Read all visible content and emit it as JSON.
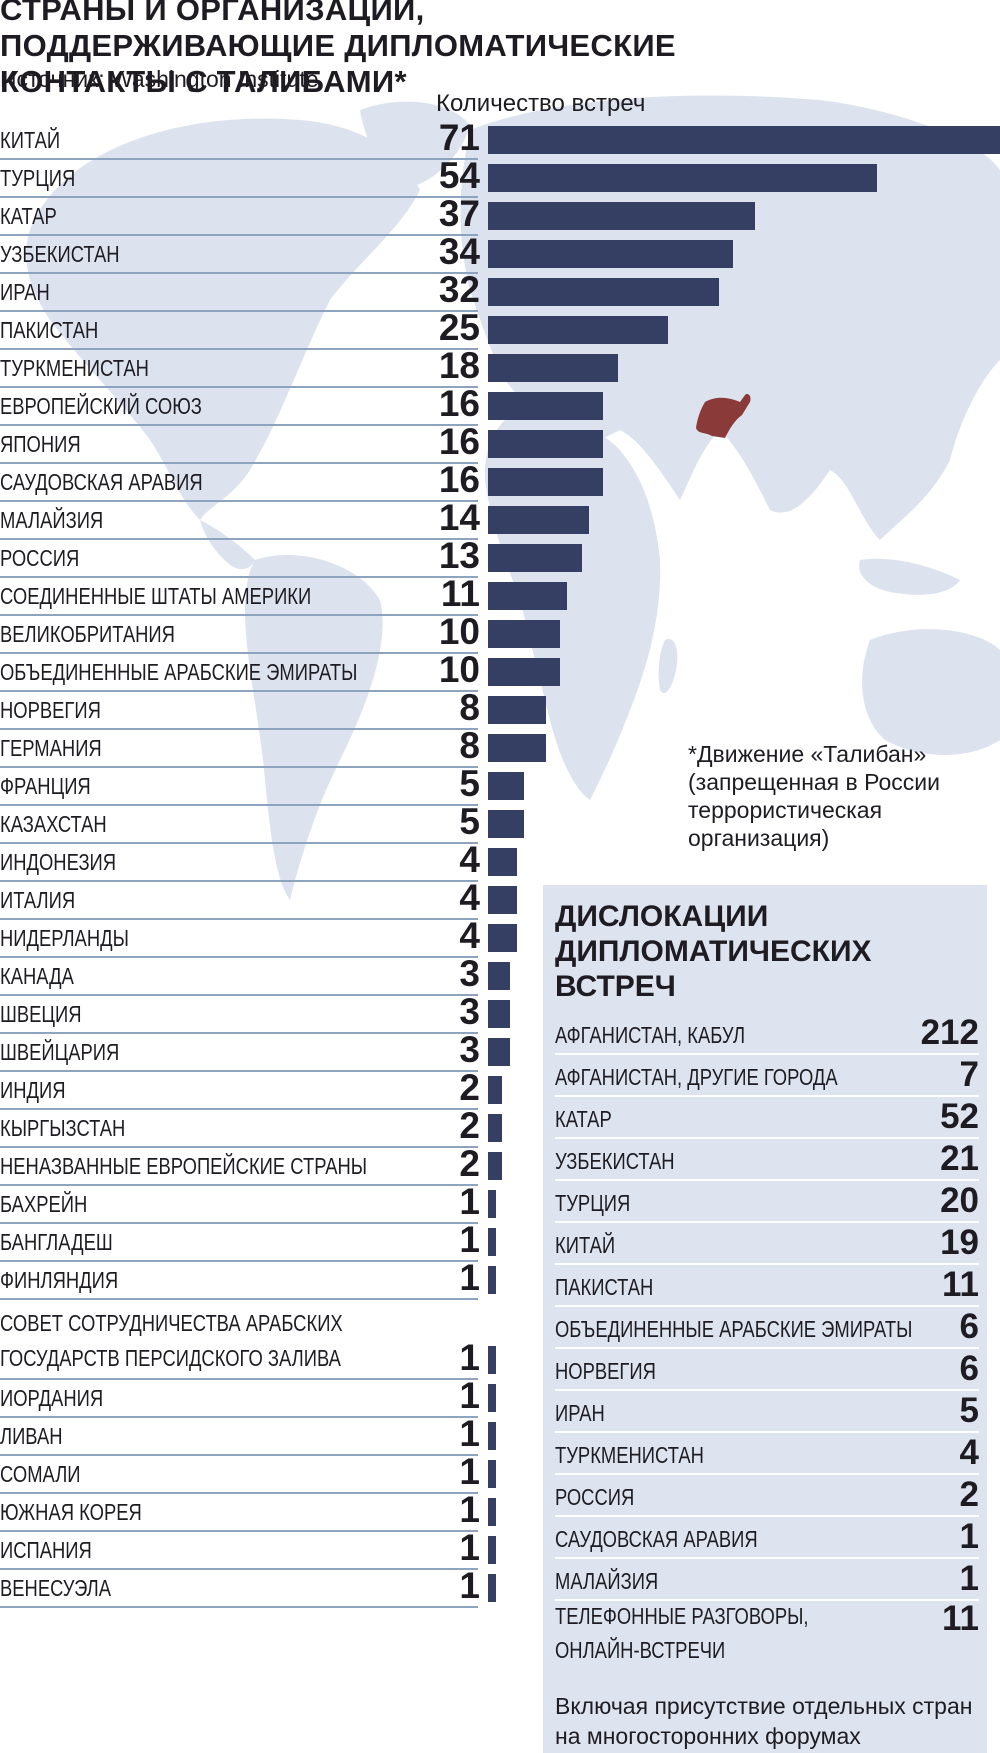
{
  "chart_data": {
    "type": "bar",
    "orientation": "horizontal",
    "title": "СТРАНЫ И ОРГАНИЗАЦИИ, ПОДДЕРЖИВАЮЩИЕ ДИПЛОМАТИЧЕСКИЕ КОНТАКТЫ С ТАЛИБАМИ*",
    "source": "Источник: Washington Institute",
    "value_label": "Количество встреч",
    "categories": [
      "КИТАЙ",
      "ТУРЦИЯ",
      "КАТАР",
      "УЗБЕКИСТАН",
      "ИРАН",
      "ПАКИСТАН",
      "ТУРКМЕНИСТАН",
      "ЕВРОПЕЙСКИЙ СОЮЗ",
      "ЯПОНИЯ",
      "САУДОВСКАЯ АРАВИЯ",
      "МАЛАЙЗИЯ",
      "РОССИЯ",
      "СОЕДИНЕННЫЕ ШТАТЫ АМЕРИКИ",
      "ВЕЛИКОБРИТАНИЯ",
      "ОБЪЕДИНЕННЫЕ АРАБСКИЕ ЭМИРАТЫ",
      "НОРВЕГИЯ",
      "ГЕРМАНИЯ",
      "ФРАНЦИЯ",
      "КАЗАХСТАН",
      "ИНДОНЕЗИЯ",
      "ИТАЛИЯ",
      "НИДЕРЛАНДЫ",
      "КАНАДА",
      "ШВЕЦИЯ",
      "ШВЕЙЦАРИЯ",
      "ИНДИЯ",
      "КЫРГЫЗСТАН",
      "НЕНАЗВАННЫЕ ЕВРОПЕЙСКИЕ СТРАНЫ",
      "БАХРЕЙН",
      "БАНГЛАДЕШ",
      "ФИНЛЯНДИЯ",
      "СОВЕТ СОТРУДНИЧЕСТВА АРАБСКИХ ГОСУДАРСТВ ПЕРСИДСКОГО ЗАЛИВА",
      "ИОРДАНИЯ",
      "ЛИВАН",
      "СОМАЛИ",
      "ЮЖНАЯ КОРЕЯ",
      "ИСПАНИЯ",
      "ВЕНЕСУЭЛА"
    ],
    "values": [
      71,
      54,
      37,
      34,
      32,
      25,
      18,
      16,
      16,
      16,
      14,
      13,
      11,
      10,
      10,
      8,
      8,
      5,
      5,
      4,
      4,
      4,
      3,
      3,
      3,
      2,
      2,
      2,
      1,
      1,
      1,
      1,
      1,
      1,
      1,
      1,
      1,
      1
    ],
    "xlim": [
      0,
      71
    ],
    "bar_color": "#353f64",
    "highlight_color": "#8b3a3a",
    "map_color": "#dde3ee"
  },
  "footnote": "*Движение «Талибан» (запрещенная в России террористическая организация)",
  "locations": {
    "title": "ДИСЛОКАЦИИ ДИПЛОМАТИЧЕСКИХ ВСТРЕЧ",
    "categories": [
      "АФГАНИСТАН, КАБУЛ",
      "АФГАНИСТАН, ДРУГИЕ ГОРОДА",
      "КАТАР",
      "УЗБЕКИСТАН",
      "ТУРЦИЯ",
      "КИТАЙ",
      "ПАКИСТАН",
      "ОБЪЕДИНЕННЫЕ АРАБСКИЕ ЭМИРАТЫ",
      "НОРВЕГИЯ",
      "ИРАН",
      "ТУРКМЕНИСТАН",
      "РОССИЯ",
      "САУДОВСКАЯ АРАВИЯ",
      "МАЛАЙЗИЯ",
      "ТЕЛЕФОННЫЕ РАЗГОВОРЫ, ОНЛАЙН-ВСТРЕЧИ"
    ],
    "values": [
      212,
      7,
      52,
      21,
      20,
      19,
      11,
      6,
      6,
      5,
      4,
      2,
      1,
      1,
      11
    ],
    "note": "Включая присутствие отдельных стран на многосторонних форумах",
    "panel_color": "#dde4ef"
  }
}
